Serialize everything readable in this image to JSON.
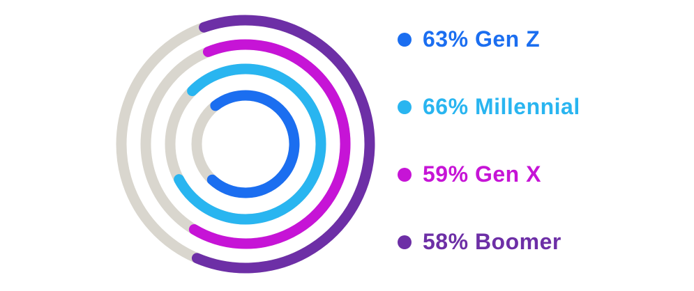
{
  "background": "#ffffff",
  "chart_data": {
    "type": "radial-progress",
    "unit": "%",
    "legend_position": "right",
    "center": {
      "x": 352,
      "y": 207
    },
    "stroke_width": 15,
    "track_color": "#d9d6ce",
    "series": [
      {
        "label": "Gen Z",
        "percent": 63,
        "legend_text": "63% Gen Z",
        "color": "#1b6ef0",
        "radius": 70,
        "start_angle": -38,
        "end_angle": 223
      },
      {
        "label": "Millennial",
        "percent": 66,
        "legend_text": "66% Millennial",
        "color": "#29b5f0",
        "radius": 108,
        "start_angle": -45,
        "end_angle": 242
      },
      {
        "label": "Gen X",
        "percent": 59,
        "legend_text": "59% Gen X",
        "color": "#c614d6",
        "radius": 143,
        "start_angle": -22,
        "end_angle": 211
      },
      {
        "label": "Boomer",
        "percent": 58,
        "legend_text": "58% Boomer",
        "color": "#6d2fa6",
        "radius": 178,
        "start_angle": -19.5,
        "end_angle": 203
      }
    ]
  }
}
